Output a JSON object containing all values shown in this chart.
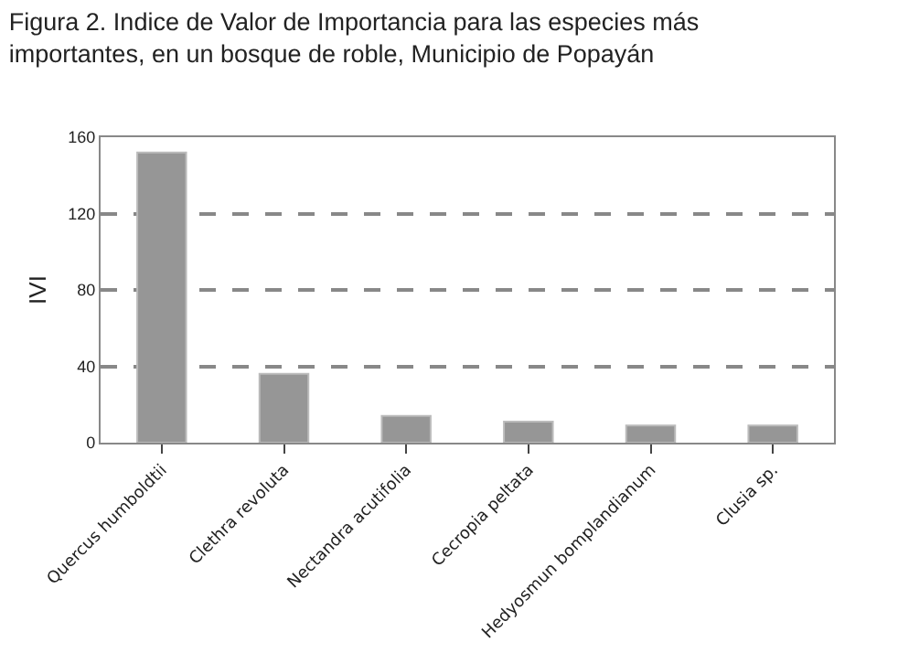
{
  "chart_data": {
    "type": "bar",
    "title": "Figura 2. Indice de Valor de Importancia para las especies más importantes, en un bosque de roble, Municipio de Popayán",
    "ylabel": "IVI",
    "categories": [
      "Quercus humboldtii",
      "Clethra revoluta",
      "Nectandra acutifolia",
      "Cecropia peltata",
      "Hedyosmun bomplandianum",
      "Clusia sp."
    ],
    "values": [
      152,
      36,
      14,
      11,
      9,
      9
    ],
    "color": "#969696",
    "ylim": [
      0,
      160
    ],
    "yticks": [
      0,
      40,
      80,
      120,
      160
    ],
    "grid": "y",
    "legend": false
  }
}
